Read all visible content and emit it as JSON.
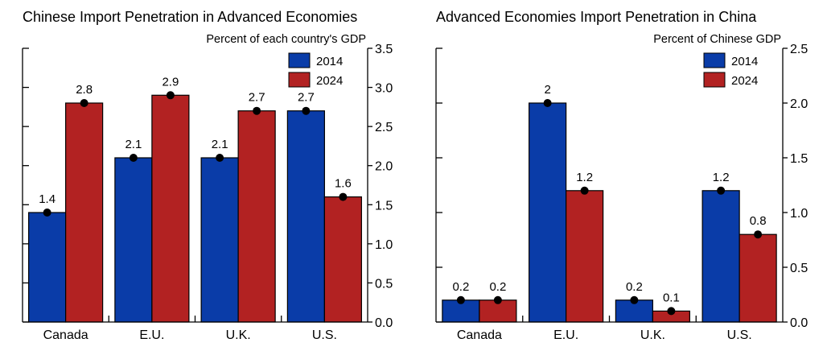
{
  "chart_data": [
    {
      "type": "bar",
      "title": "Chinese Import Penetration in Advanced Economies",
      "unit_label": "Percent of each country's GDP",
      "categories": [
        "Canada",
        "E.U.",
        "U.K.",
        "U.S."
      ],
      "series": [
        {
          "name": "2014",
          "values": [
            1.4,
            2.1,
            2.1,
            2.7
          ],
          "labels": [
            "1.4",
            "2.1",
            "2.1",
            "2.7"
          ]
        },
        {
          "name": "2024",
          "values": [
            2.8,
            2.9,
            2.7,
            1.6
          ],
          "labels": [
            "2.8",
            "2.9",
            "2.7",
            "1.6"
          ]
        }
      ],
      "ylim": [
        0,
        3.5
      ],
      "yticks": [
        0,
        0.5,
        1.0,
        1.5,
        2.0,
        2.5,
        3.0,
        3.5
      ],
      "ytick_labels": [
        "0.0",
        "0.5",
        "1.0",
        "1.5",
        "2.0",
        "2.5",
        "3.0",
        "3.5"
      ],
      "yaxis_side": "right",
      "legend_position": "top-right",
      "grid": false
    },
    {
      "type": "bar",
      "title": "Advanced Economies Import Penetration in China",
      "unit_label": "Percent of Chinese GDP",
      "categories": [
        "Canada",
        "E.U.",
        "U.K.",
        "U.S."
      ],
      "series": [
        {
          "name": "2014",
          "values": [
            0.2,
            2.0,
            0.2,
            1.2
          ],
          "labels": [
            "0.2",
            "2",
            "0.2",
            "1.2"
          ]
        },
        {
          "name": "2024",
          "values": [
            0.2,
            1.2,
            0.1,
            0.8
          ],
          "labels": [
            "0.2",
            "1.2",
            "0.1",
            "0.8"
          ]
        }
      ],
      "ylim": [
        0,
        2.5
      ],
      "yticks": [
        0,
        0.5,
        1.0,
        1.5,
        2.0,
        2.5
      ],
      "ytick_labels": [
        "0.0",
        "0.5",
        "1.0",
        "1.5",
        "2.0",
        "2.5"
      ],
      "yaxis_side": "right",
      "legend_position": "top-right",
      "grid": false
    }
  ],
  "colors": {
    "series_2014": "#0a3ca8",
    "series_2024": "#b22222"
  }
}
